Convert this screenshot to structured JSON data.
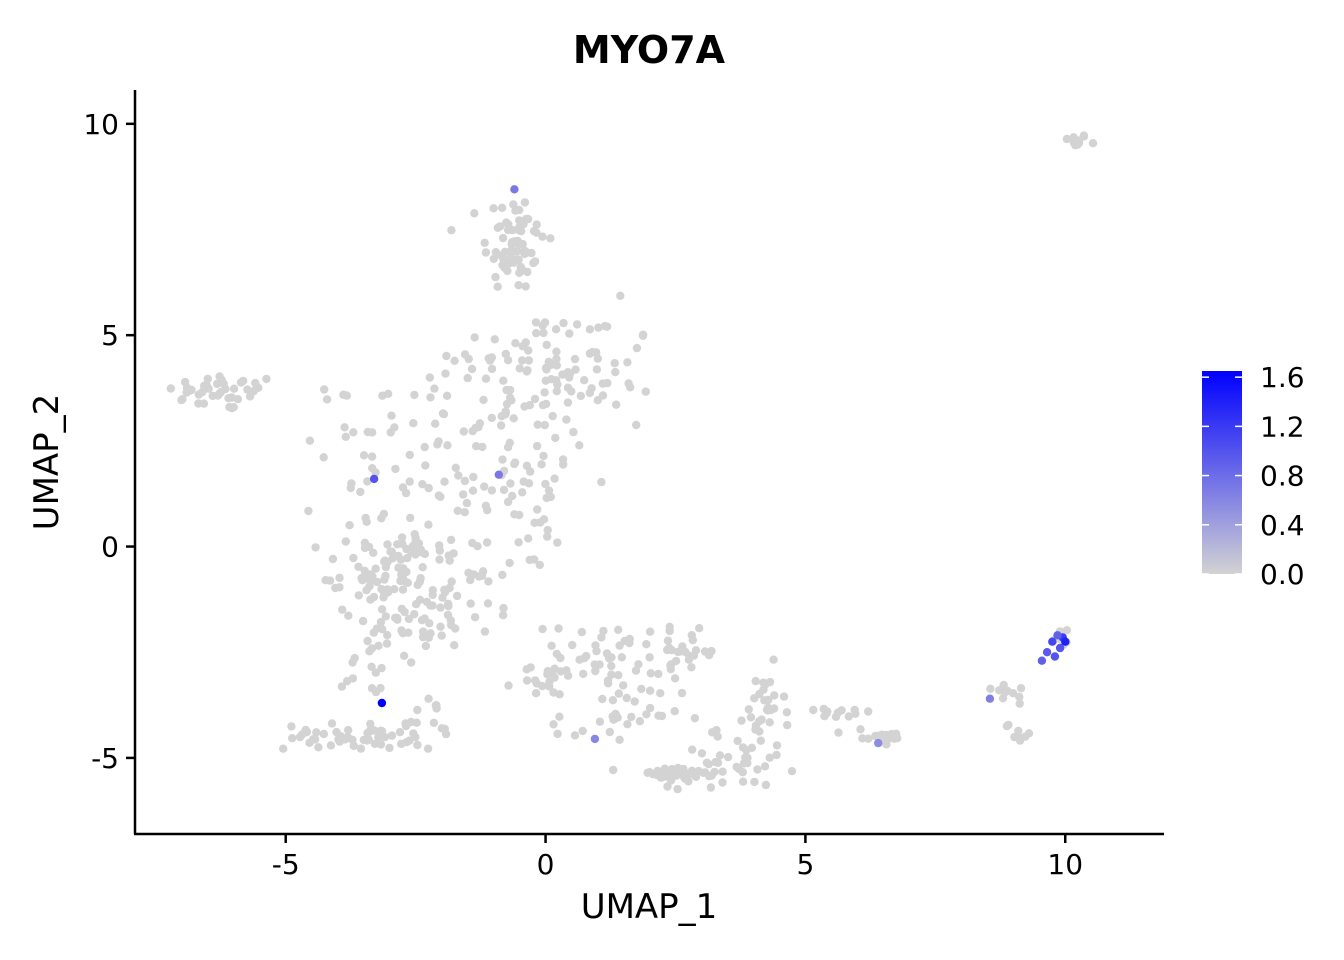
{
  "chart_data": {
    "type": "scatter",
    "title": "MYO7A",
    "xlabel": "UMAP_1",
    "ylabel": "UMAP_2",
    "xlim": [
      -7.9,
      11.9
    ],
    "ylim": [
      -6.8,
      10.8
    ],
    "x_ticks": [
      -5,
      0,
      5,
      10
    ],
    "y_ticks": [
      -5,
      0,
      5,
      10
    ],
    "x_tick_labels": [
      "-5",
      "0",
      "5",
      "10"
    ],
    "y_tick_labels": [
      "-5",
      "0",
      "5",
      "10"
    ],
    "grid": false,
    "legend_position": "right",
    "color_scale": {
      "low_color": "#d3d3d3",
      "high_color": "#0000ff",
      "min": 0.0,
      "max": 1.65,
      "tick_values": [
        0.0,
        0.4,
        0.8,
        1.2,
        1.6
      ],
      "tick_labels": [
        "0.0",
        "0.4",
        "0.8",
        "1.2",
        "1.6"
      ]
    },
    "background_clusters": [
      {
        "x": 10.2,
        "y": 9.6,
        "sx": 0.12,
        "sy": 0.08,
        "n": 12
      },
      {
        "x": -6.2,
        "y": 3.65,
        "sx": 0.55,
        "sy": 0.22,
        "n": 40
      },
      {
        "x": -0.6,
        "y": 7.2,
        "sx": 0.3,
        "sy": 0.6,
        "n": 70
      },
      {
        "x": -0.4,
        "y": 4.3,
        "sx": 0.7,
        "sy": 0.7,
        "n": 50
      },
      {
        "x": 0.9,
        "y": 4.0,
        "sx": 0.6,
        "sy": 0.8,
        "n": 50
      },
      {
        "x": -2.3,
        "y": 3.0,
        "sx": 0.9,
        "sy": 0.6,
        "n": 40
      },
      {
        "x": -0.6,
        "y": 1.5,
        "sx": 0.8,
        "sy": 0.9,
        "n": 60
      },
      {
        "x": -3.3,
        "y": 1.4,
        "sx": 0.6,
        "sy": 1.2,
        "n": 35
      },
      {
        "x": -3.1,
        "y": -0.6,
        "sx": 0.5,
        "sy": 0.5,
        "n": 70
      },
      {
        "x": -1.5,
        "y": -0.9,
        "sx": 0.8,
        "sy": 0.5,
        "n": 45
      },
      {
        "x": -2.4,
        "y": -1.9,
        "sx": 0.7,
        "sy": 0.5,
        "n": 35
      },
      {
        "x": -3.3,
        "y": -2.7,
        "sx": 0.3,
        "sy": 0.6,
        "n": 20
      },
      {
        "x": -3.8,
        "y": -4.5,
        "sx": 0.6,
        "sy": 0.15,
        "n": 50
      },
      {
        "x": -2.3,
        "y": -4.2,
        "sx": 0.25,
        "sy": 0.3,
        "n": 15
      },
      {
        "x": 0.2,
        "y": -3.0,
        "sx": 0.4,
        "sy": 0.3,
        "n": 22
      },
      {
        "x": 1.3,
        "y": -2.6,
        "sx": 0.5,
        "sy": 0.4,
        "n": 40
      },
      {
        "x": 1.4,
        "y": -4.1,
        "sx": 0.6,
        "sy": 0.4,
        "n": 28
      },
      {
        "x": 2.5,
        "y": -5.4,
        "sx": 0.5,
        "sy": 0.1,
        "n": 40
      },
      {
        "x": 3.6,
        "y": -5.0,
        "sx": 0.6,
        "sy": 0.35,
        "n": 35
      },
      {
        "x": 2.7,
        "y": -2.5,
        "sx": 0.3,
        "sy": 0.25,
        "n": 25
      },
      {
        "x": 4.2,
        "y": -3.9,
        "sx": 0.2,
        "sy": 0.5,
        "n": 30
      },
      {
        "x": 5.6,
        "y": -3.95,
        "sx": 0.35,
        "sy": 0.07,
        "n": 12
      },
      {
        "x": 6.4,
        "y": -4.5,
        "sx": 0.3,
        "sy": 0.1,
        "n": 18
      },
      {
        "x": 8.8,
        "y": -3.4,
        "sx": 0.35,
        "sy": 0.12,
        "n": 10
      },
      {
        "x": 9.1,
        "y": -4.4,
        "sx": 0.12,
        "sy": 0.15,
        "n": 8
      },
      {
        "x": 9.9,
        "y": -2.2,
        "sx": 0.15,
        "sy": 0.12,
        "n": 8
      }
    ],
    "expressing_points": [
      {
        "x": -0.6,
        "y": 8.45,
        "value": 0.7
      },
      {
        "x": -3.3,
        "y": 1.6,
        "value": 1.0
      },
      {
        "x": -0.9,
        "y": 1.7,
        "value": 0.7
      },
      {
        "x": -3.15,
        "y": -3.7,
        "value": 1.65
      },
      {
        "x": 0.95,
        "y": -4.55,
        "value": 0.6
      },
      {
        "x": 6.4,
        "y": -4.65,
        "value": 0.55
      },
      {
        "x": 8.55,
        "y": -3.6,
        "value": 0.65
      },
      {
        "x": 9.55,
        "y": -2.7,
        "value": 0.9
      },
      {
        "x": 9.65,
        "y": -2.5,
        "value": 0.95
      },
      {
        "x": 9.75,
        "y": -2.25,
        "value": 1.1
      },
      {
        "x": 9.8,
        "y": -2.6,
        "value": 1.0
      },
      {
        "x": 9.9,
        "y": -2.4,
        "value": 1.0
      },
      {
        "x": 9.95,
        "y": -2.15,
        "value": 1.2
      },
      {
        "x": 10.0,
        "y": -2.25,
        "value": 1.4
      },
      {
        "x": 9.85,
        "y": -2.1,
        "value": 0.9
      }
    ]
  }
}
